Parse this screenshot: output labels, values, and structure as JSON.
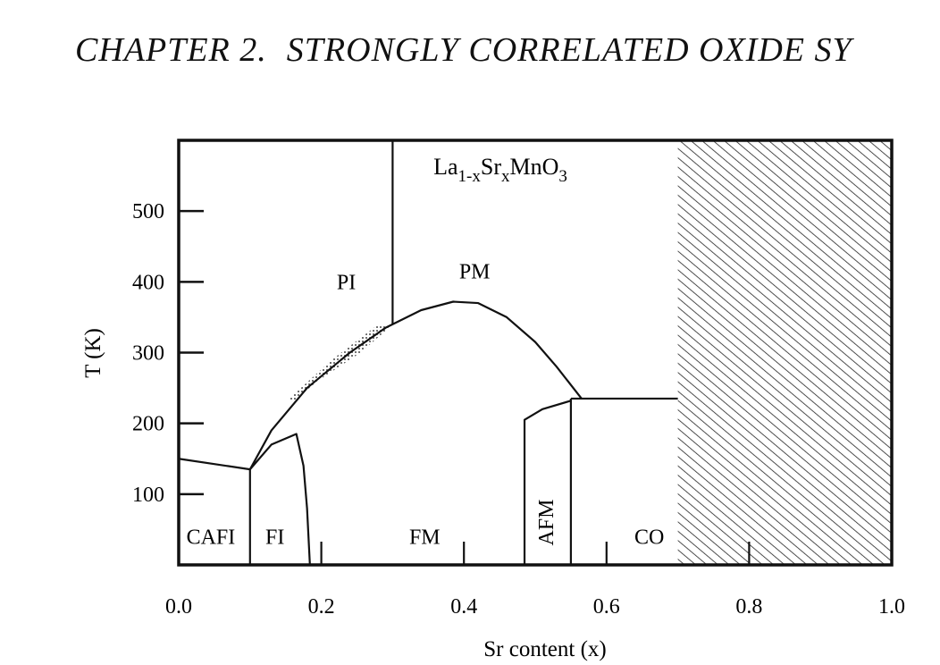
{
  "header": {
    "chapter": "CHAPTER 2.",
    "title": "STRONGLY CORRELATED OXIDE SY"
  },
  "chart_data": {
    "type": "phase-diagram",
    "formula": {
      "base": "La",
      "sub1": "1-x",
      "mid": "Sr",
      "sub2": "x",
      "tail": "MnO",
      "sub3": "3"
    },
    "xlabel": "Sr content (x)",
    "ylabel": "T (K)",
    "xlim": [
      0.0,
      1.0
    ],
    "ylim": [
      0,
      600
    ],
    "x_ticks": [
      0.0,
      0.2,
      0.4,
      0.6,
      0.8,
      1.0
    ],
    "x_tick_labels": [
      "0.0",
      "0.2",
      "0.4",
      "0.6",
      "0.8",
      "1.0"
    ],
    "y_ticks": [
      100,
      200,
      300,
      400,
      500
    ],
    "y_tick_labels": [
      "100",
      "200",
      "300",
      "400",
      "500"
    ],
    "minor_x_ticks": [
      0.2,
      0.4,
      0.6,
      0.8
    ],
    "hatched_region": {
      "x_from": 0.7,
      "x_to": 1.0
    },
    "regions": [
      {
        "label": "PI",
        "x": 0.235,
        "y": 390
      },
      {
        "label": "PM",
        "x": 0.415,
        "y": 405
      },
      {
        "label": "FM",
        "x": 0.345,
        "y": 30
      },
      {
        "label": "CAFI",
        "x": 0.045,
        "y": 30
      },
      {
        "label": "FI",
        "x": 0.135,
        "y": 30
      },
      {
        "label": "AFM",
        "x": 0.525,
        "y": 60,
        "rotate": true
      },
      {
        "label": "CO",
        "x": 0.66,
        "y": 30
      }
    ],
    "boundaries": [
      {
        "name": "PM-boundary",
        "points": [
          [
            0.1,
            135
          ],
          [
            0.13,
            190
          ],
          [
            0.18,
            250
          ],
          [
            0.24,
            300
          ],
          [
            0.29,
            335
          ],
          [
            0.34,
            360
          ],
          [
            0.385,
            372
          ],
          [
            0.42,
            370
          ],
          [
            0.46,
            350
          ],
          [
            0.5,
            315
          ],
          [
            0.53,
            280
          ],
          [
            0.565,
            235
          ]
        ]
      },
      {
        "name": "PI-PM-vertical",
        "points": [
          [
            0.3,
            600
          ],
          [
            0.3,
            340
          ]
        ]
      },
      {
        "name": "CAFI-upper",
        "points": [
          [
            0.0,
            150
          ],
          [
            0.1,
            135
          ]
        ]
      },
      {
        "name": "CAFI-FI-vertical",
        "points": [
          [
            0.1,
            135
          ],
          [
            0.1,
            0
          ]
        ]
      },
      {
        "name": "FI-dome",
        "points": [
          [
            0.1,
            135
          ],
          [
            0.13,
            170
          ],
          [
            0.165,
            185
          ],
          [
            0.175,
            140
          ],
          [
            0.18,
            80
          ],
          [
            0.184,
            0
          ]
        ]
      },
      {
        "name": "AFM-left",
        "points": [
          [
            0.485,
            0
          ],
          [
            0.485,
            205
          ],
          [
            0.51,
            220
          ],
          [
            0.55,
            232
          ]
        ]
      },
      {
        "name": "AFM-CO-vertical",
        "points": [
          [
            0.55,
            0
          ],
          [
            0.55,
            235
          ]
        ]
      },
      {
        "name": "CO-top",
        "points": [
          [
            0.55,
            235
          ],
          [
            0.7,
            235
          ]
        ]
      }
    ],
    "crossover_shading": {
      "points": [
        [
          0.155,
          235
        ],
        [
          0.215,
          290
        ],
        [
          0.28,
          340
        ],
        [
          0.295,
          335
        ],
        [
          0.255,
          300
        ],
        [
          0.195,
          260
        ],
        [
          0.16,
          230
        ]
      ]
    },
    "colors": {
      "line": "#111111",
      "background": "#ffffff"
    }
  }
}
